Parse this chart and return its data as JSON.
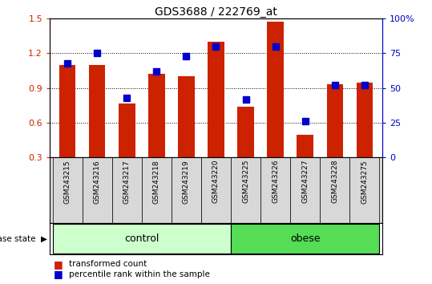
{
  "title": "GDS3688 / 222769_at",
  "samples": [
    "GSM243215",
    "GSM243216",
    "GSM243217",
    "GSM243218",
    "GSM243219",
    "GSM243220",
    "GSM243225",
    "GSM243226",
    "GSM243227",
    "GSM243228",
    "GSM243275"
  ],
  "red_values": [
    1.1,
    1.1,
    0.77,
    1.02,
    1.0,
    1.3,
    0.74,
    1.47,
    0.5,
    0.93,
    0.95
  ],
  "blue_values": [
    68,
    75,
    43,
    62,
    73,
    80,
    42,
    80,
    26,
    52,
    52
  ],
  "red_color": "#cc2200",
  "blue_color": "#0000cc",
  "bar_bottom": 0.3,
  "ylim_left": [
    0.3,
    1.5
  ],
  "ylim_right": [
    0,
    100
  ],
  "yticks_left": [
    0.3,
    0.6,
    0.9,
    1.2,
    1.5
  ],
  "yticks_right": [
    0,
    25,
    50,
    75,
    100
  ],
  "ytick_labels_right": [
    "0",
    "25",
    "50",
    "75",
    "100%"
  ],
  "groups": [
    {
      "label": "control",
      "indices": [
        0,
        1,
        2,
        3,
        4,
        5
      ],
      "color": "#ccffcc"
    },
    {
      "label": "obese",
      "indices": [
        6,
        7,
        8,
        9,
        10
      ],
      "color": "#55dd55"
    }
  ],
  "group_label_text": "disease state",
  "legend_items": [
    {
      "label": "transformed count",
      "color": "#cc2200"
    },
    {
      "label": "percentile rank within the sample",
      "color": "#0000cc"
    }
  ],
  "label_bg_color": "#d8d8d8",
  "plot_bg": "#ffffff",
  "bar_width": 0.55,
  "blue_marker_size": 6,
  "grid_color": "#000000"
}
